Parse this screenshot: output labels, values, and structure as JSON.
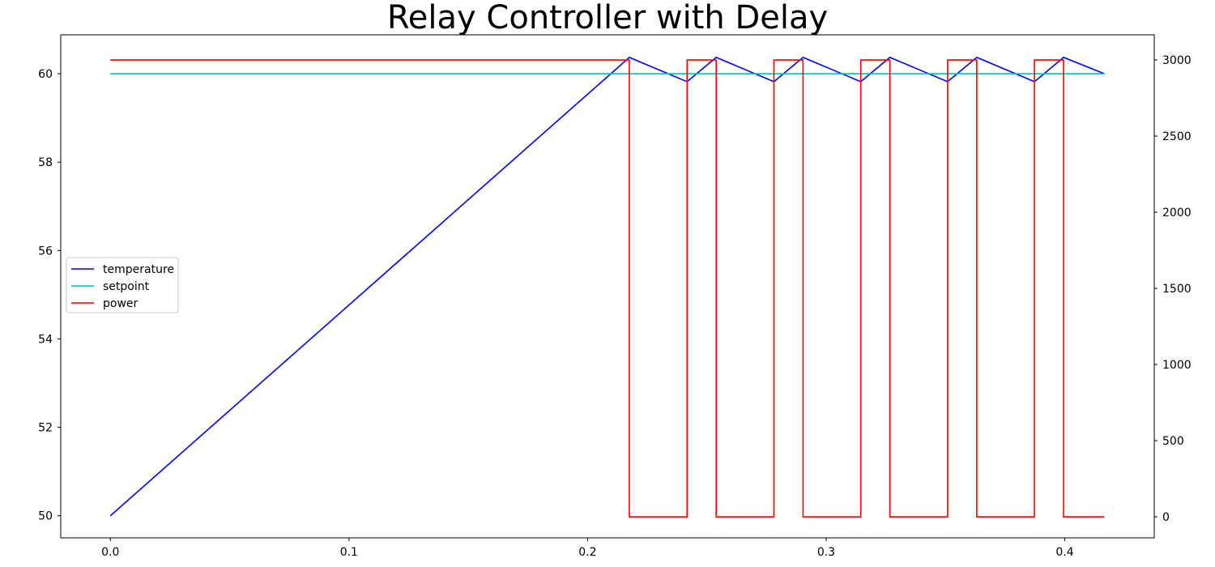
{
  "chart_data": {
    "type": "line",
    "title": "Relay Controller with Delay",
    "xlabel": "",
    "ylabel_left": "",
    "ylabel_right": "",
    "grid": false,
    "legend_position": "center-left",
    "xlim": [
      -0.0208,
      0.4375
    ],
    "ylim_left": [
      49.5,
      60.88
    ],
    "ylim_right": [
      -138,
      3165
    ],
    "x_ticks": [
      0.0,
      0.1,
      0.2,
      0.3,
      0.4
    ],
    "x_tick_labels": [
      "0.0",
      "0.1",
      "0.2",
      "0.3",
      "0.4"
    ],
    "left_ticks": [
      50,
      52,
      54,
      56,
      58,
      60
    ],
    "left_tick_labels": [
      "50",
      "52",
      "54",
      "56",
      "58",
      "60"
    ],
    "right_ticks": [
      0,
      500,
      1000,
      1500,
      2000,
      2500,
      3000
    ],
    "right_tick_labels": [
      "0",
      "500",
      "1000",
      "1500",
      "2000",
      "2500",
      "3000"
    ],
    "series": [
      {
        "name": "temperature",
        "axis": "left",
        "color": "#0000ff",
        "x": [
          0.0,
          0.2175,
          0.2417,
          0.2539,
          0.2781,
          0.2903,
          0.3145,
          0.3267,
          0.3509,
          0.3631,
          0.3873,
          0.3995,
          0.4166
        ],
        "y": [
          50.0,
          60.37,
          59.82,
          60.37,
          59.82,
          60.37,
          59.82,
          60.37,
          59.82,
          60.37,
          59.82,
          60.37,
          60.0
        ]
      },
      {
        "name": "setpoint",
        "axis": "left",
        "color": "#00bfbf",
        "x": [
          0.0,
          0.4166
        ],
        "y": [
          60.0,
          60.0
        ]
      },
      {
        "name": "power",
        "axis": "right",
        "color": "#ff0000",
        "x": [
          0.0,
          0.2175,
          0.2175,
          0.2417,
          0.2417,
          0.2539,
          0.2539,
          0.2781,
          0.2781,
          0.2903,
          0.2903,
          0.3145,
          0.3145,
          0.3267,
          0.3267,
          0.3509,
          0.3509,
          0.3631,
          0.3631,
          0.3873,
          0.3873,
          0.3995,
          0.3995,
          0.4166
        ],
        "y": [
          3000,
          3000,
          0,
          0,
          3000,
          3000,
          0,
          0,
          3000,
          3000,
          0,
          0,
          3000,
          3000,
          0,
          0,
          3000,
          3000,
          0,
          0,
          3000,
          3000,
          0,
          0
        ]
      }
    ]
  }
}
